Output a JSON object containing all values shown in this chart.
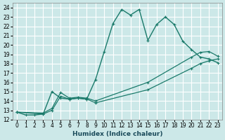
{
  "xlabel": "Humidex (Indice chaleur)",
  "ylabel": "",
  "xlim": [
    -0.5,
    23.5
  ],
  "ylim": [
    12,
    24.5
  ],
  "yticks": [
    12,
    13,
    14,
    15,
    16,
    17,
    18,
    19,
    20,
    21,
    22,
    23,
    24
  ],
  "xticks": [
    0,
    1,
    2,
    3,
    4,
    5,
    6,
    7,
    8,
    9,
    10,
    11,
    12,
    13,
    14,
    15,
    16,
    17,
    18,
    19,
    20,
    21,
    22,
    23
  ],
  "bg_color": "#cce8e8",
  "grid_color": "#ffffff",
  "line_color": "#1a7a6a",
  "lines": [
    {
      "x": [
        0,
        1,
        2,
        3,
        4,
        5,
        6,
        7,
        8,
        9,
        10,
        11,
        12,
        13,
        14,
        15,
        16,
        17,
        18,
        19,
        20,
        21,
        22,
        23
      ],
      "y": [
        12.8,
        12.5,
        12.5,
        12.6,
        15.0,
        14.3,
        14.2,
        14.3,
        14.2,
        16.3,
        19.3,
        22.3,
        23.8,
        23.2,
        23.8,
        20.5,
        22.2,
        23.0,
        22.2,
        20.4,
        19.5,
        18.7,
        18.5,
        18.1
      ]
    },
    {
      "x": [
        0,
        3,
        4,
        5,
        6,
        7,
        8,
        9,
        15,
        20,
        21,
        22,
        23
      ],
      "y": [
        12.8,
        12.6,
        13.0,
        14.5,
        14.2,
        14.3,
        14.2,
        13.8,
        15.2,
        17.5,
        18.0,
        18.3,
        18.5
      ]
    },
    {
      "x": [
        0,
        3,
        4,
        5,
        6,
        7,
        8,
        9,
        15,
        20,
        21,
        22,
        23
      ],
      "y": [
        12.8,
        12.7,
        13.2,
        14.9,
        14.3,
        14.4,
        14.3,
        14.0,
        16.0,
        18.7,
        19.2,
        19.3,
        18.8
      ]
    }
  ]
}
